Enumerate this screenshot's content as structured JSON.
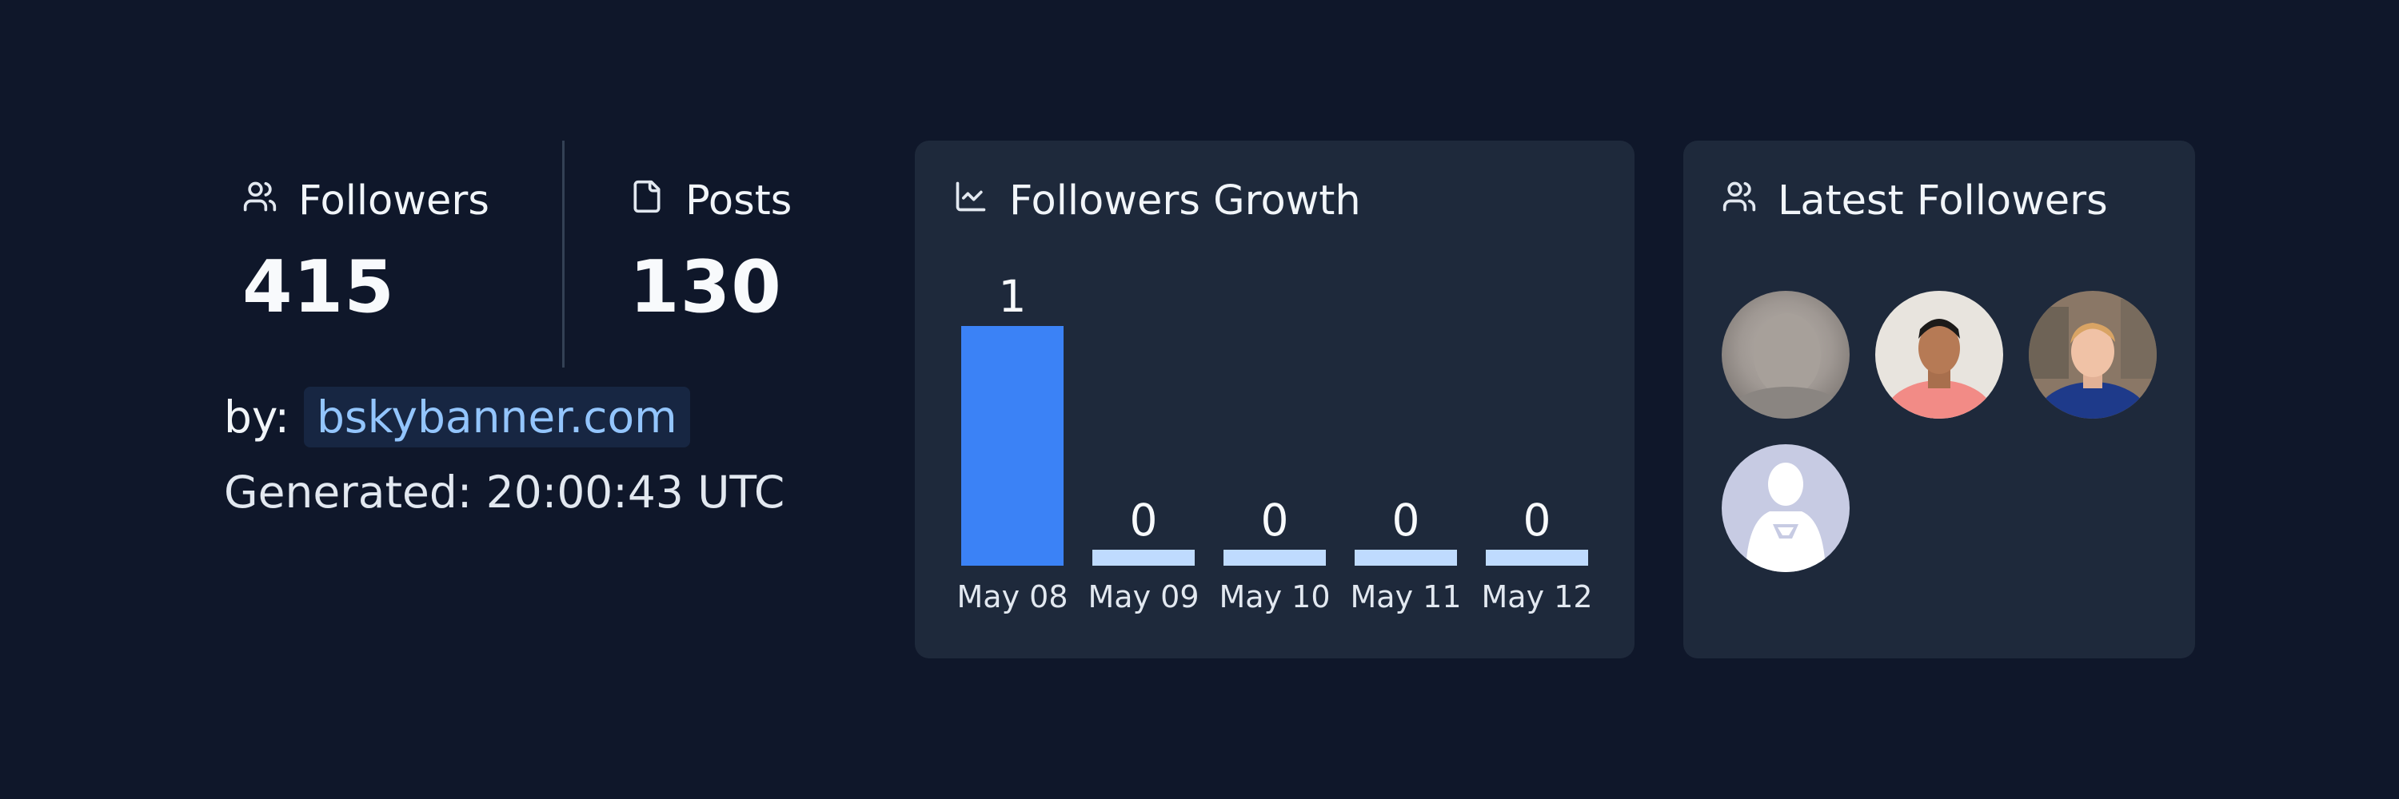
{
  "stats": {
    "followers": {
      "label": "Followers",
      "value": "415",
      "icon": "users-icon"
    },
    "posts": {
      "label": "Posts",
      "value": "130",
      "icon": "file-icon"
    }
  },
  "byline": {
    "prefix": "by:",
    "link": "bskybanner.com"
  },
  "generated": "Generated: 20:00:43 UTC",
  "growth_card": {
    "title": "Followers Growth",
    "icon": "line-chart-icon"
  },
  "followers_card": {
    "title": "Latest Followers",
    "icon": "users-icon",
    "avatars": [
      "avatar-1",
      "avatar-2",
      "avatar-3",
      "avatar-4"
    ]
  },
  "colors": {
    "background": "#0f172a",
    "card": "#1e293b",
    "bar_primary": "#3b82f6",
    "bar_light": "#bfdbfe",
    "link": "#93c5fd"
  },
  "chart_data": {
    "type": "bar",
    "categories": [
      "May 08",
      "May 09",
      "May 10",
      "May 11",
      "May 12"
    ],
    "values": [
      1,
      0,
      0,
      0,
      0
    ],
    "data_labels": [
      "1",
      "0",
      "0",
      "0",
      "0"
    ],
    "title": "Followers Growth",
    "xlabel": "",
    "ylabel": "",
    "grid": false,
    "legend": "none"
  }
}
